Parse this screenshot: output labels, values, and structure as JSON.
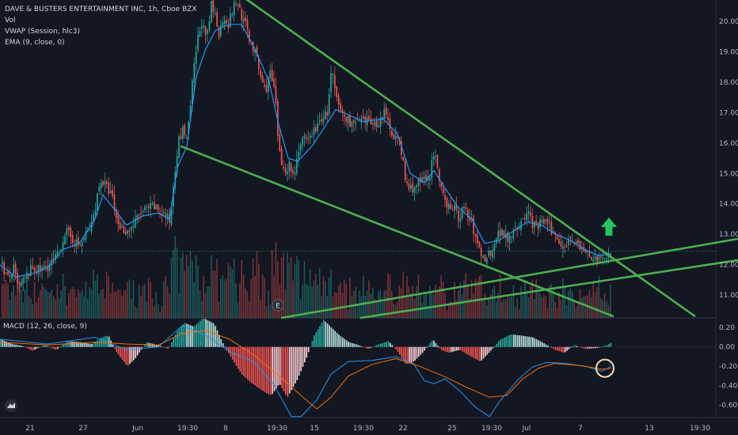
{
  "legend": {
    "title": "DAVE & BUSTERS ENTERTAINMENT INC, 1h, Cboe BZX",
    "vol": "Vol",
    "vwap": "VWAP (Session, hlc3)",
    "ema": "EMA (9, close, 0)"
  },
  "macd_legend": "MACD (12, 26, close, 9)",
  "event_marker": "E",
  "colors": {
    "background": "#131722",
    "up": "#26a69a",
    "down": "#ef5350",
    "ema": "#2196f3",
    "trendline": "#4caf50",
    "arrow": "#22c55e",
    "macd_line": "#2196f3",
    "signal_line": "#ff6d00",
    "circle": "#f5deb3"
  },
  "chart_data": [
    {
      "type": "candlestick",
      "title": "DAVE & BUSTERS ENTERTAINMENT INC, 1h, Cboe BZX",
      "x_ticks": [
        "21",
        "27",
        "Jun",
        "19:30",
        "8",
        "19:30",
        "15",
        "19:30",
        "22",
        "25",
        "19:30",
        "Jul",
        "7",
        "13",
        "19:30"
      ],
      "y_ticks": [
        11.0,
        12.0,
        13.0,
        14.0,
        15.0,
        16.0,
        17.0,
        18.0,
        19.0,
        20.0
      ],
      "ylim": [
        10.25,
        20.7
      ],
      "current_price": 12.45,
      "price_path": [
        [
          0,
          12.1
        ],
        [
          6,
          11.7
        ],
        [
          10,
          11.5
        ],
        [
          16,
          11.9
        ],
        [
          22,
          11.2
        ],
        [
          30,
          11.5
        ],
        [
          40,
          11.9
        ],
        [
          50,
          11.8
        ],
        [
          62,
          12.0
        ],
        [
          72,
          12.3
        ],
        [
          82,
          13.1
        ],
        [
          92,
          12.8
        ],
        [
          100,
          12.6
        ],
        [
          108,
          13.0
        ],
        [
          115,
          13.3
        ],
        [
          120,
          14.0
        ],
        [
          126,
          14.8
        ],
        [
          132,
          14.6
        ],
        [
          140,
          14.3
        ],
        [
          146,
          13.5
        ],
        [
          152,
          13.2
        ],
        [
          160,
          13.1
        ],
        [
          168,
          13.3
        ],
        [
          176,
          13.7
        ],
        [
          184,
          13.8
        ],
        [
          192,
          13.9
        ],
        [
          200,
          13.8
        ],
        [
          208,
          13.6
        ],
        [
          214,
          13.4
        ],
        [
          219,
          14.9
        ],
        [
          224,
          16.0
        ],
        [
          230,
          16.4
        ],
        [
          236,
          16.2
        ],
        [
          242,
          17.9
        ],
        [
          248,
          19.3
        ],
        [
          254,
          20.0
        ],
        [
          260,
          19.3
        ],
        [
          266,
          20.5
        ],
        [
          272,
          20.1
        ],
        [
          276,
          19.6
        ],
        [
          282,
          20.2
        ],
        [
          288,
          19.9
        ],
        [
          294,
          20.5
        ],
        [
          300,
          20.6
        ],
        [
          305,
          20.1
        ],
        [
          310,
          19.8
        ],
        [
          316,
          19.3
        ],
        [
          322,
          18.9
        ],
        [
          328,
          18.2
        ],
        [
          334,
          17.7
        ],
        [
          340,
          18.3
        ],
        [
          346,
          17.7
        ],
        [
          352,
          15.6
        ],
        [
          358,
          15.1
        ],
        [
          364,
          15.3
        ],
        [
          370,
          14.9
        ],
        [
          376,
          15.8
        ],
        [
          382,
          16.1
        ],
        [
          388,
          16.0
        ],
        [
          394,
          16.4
        ],
        [
          400,
          16.5
        ],
        [
          406,
          16.9
        ],
        [
          412,
          16.9
        ],
        [
          418,
          18.4
        ],
        [
          424,
          17.4
        ],
        [
          430,
          17.0
        ],
        [
          436,
          16.8
        ],
        [
          442,
          16.7
        ],
        [
          448,
          16.6
        ],
        [
          454,
          16.7
        ],
        [
          460,
          16.6
        ],
        [
          466,
          16.8
        ],
        [
          472,
          16.6
        ],
        [
          478,
          16.7
        ],
        [
          484,
          17.0
        ],
        [
          490,
          16.6
        ],
        [
          496,
          16.3
        ],
        [
          502,
          16.1
        ],
        [
          508,
          15.4
        ],
        [
          512,
          14.6
        ],
        [
          518,
          14.5
        ],
        [
          524,
          14.6
        ],
        [
          530,
          14.7
        ],
        [
          536,
          14.8
        ],
        [
          542,
          15.0
        ],
        [
          548,
          15.7
        ],
        [
          554,
          14.6
        ],
        [
          560,
          14.1
        ],
        [
          566,
          14.0
        ],
        [
          572,
          13.9
        ],
        [
          578,
          13.5
        ],
        [
          584,
          13.9
        ],
        [
          590,
          13.6
        ],
        [
          596,
          13.3
        ],
        [
          600,
          12.8
        ],
        [
          606,
          12.4
        ],
        [
          612,
          12.2
        ],
        [
          618,
          12.4
        ],
        [
          624,
          12.8
        ],
        [
          630,
          13.1
        ],
        [
          636,
          13.0
        ],
        [
          642,
          12.9
        ],
        [
          648,
          13.2
        ],
        [
          654,
          13.3
        ],
        [
          660,
          13.4
        ],
        [
          666,
          13.8
        ],
        [
          672,
          13.3
        ],
        [
          678,
          13.2
        ],
        [
          684,
          13.5
        ],
        [
          690,
          13.3
        ],
        [
          696,
          13.1
        ],
        [
          702,
          12.9
        ],
        [
          708,
          12.7
        ],
        [
          714,
          12.7
        ],
        [
          720,
          12.9
        ],
        [
          726,
          12.8
        ],
        [
          732,
          12.5
        ],
        [
          738,
          12.4
        ],
        [
          744,
          12.3
        ],
        [
          750,
          12.2
        ],
        [
          756,
          12.1
        ],
        [
          762,
          12.2
        ],
        [
          768,
          12.4
        ],
        [
          772,
          12.45
        ]
      ],
      "ema_path": [
        [
          0,
          12.0
        ],
        [
          20,
          11.6
        ],
        [
          40,
          11.7
        ],
        [
          60,
          11.9
        ],
        [
          80,
          12.5
        ],
        [
          100,
          12.7
        ],
        [
          120,
          13.5
        ],
        [
          130,
          14.3
        ],
        [
          145,
          13.8
        ],
        [
          160,
          13.3
        ],
        [
          180,
          13.6
        ],
        [
          200,
          13.7
        ],
        [
          214,
          13.5
        ],
        [
          224,
          15.2
        ],
        [
          236,
          15.9
        ],
        [
          248,
          18.2
        ],
        [
          260,
          19.1
        ],
        [
          272,
          19.7
        ],
        [
          290,
          19.9
        ],
        [
          305,
          19.9
        ],
        [
          322,
          19.1
        ],
        [
          340,
          18.0
        ],
        [
          352,
          16.6
        ],
        [
          364,
          15.5
        ],
        [
          376,
          15.4
        ],
        [
          394,
          15.9
        ],
        [
          412,
          16.6
        ],
        [
          424,
          17.1
        ],
        [
          442,
          16.9
        ],
        [
          460,
          16.7
        ],
        [
          484,
          16.8
        ],
        [
          502,
          16.3
        ],
        [
          518,
          15.0
        ],
        [
          536,
          14.7
        ],
        [
          548,
          15.1
        ],
        [
          560,
          14.6
        ],
        [
          578,
          13.9
        ],
        [
          596,
          13.5
        ],
        [
          612,
          12.7
        ],
        [
          630,
          12.8
        ],
        [
          648,
          13.1
        ],
        [
          666,
          13.4
        ],
        [
          684,
          13.3
        ],
        [
          702,
          13.0
        ],
        [
          720,
          12.8
        ],
        [
          738,
          12.5
        ],
        [
          756,
          12.3
        ],
        [
          772,
          12.35
        ]
      ],
      "trendlines": [
        {
          "name": "upper-resistance",
          "from": [
            307,
            20.8
          ],
          "to": [
            878,
            10.3
          ]
        },
        {
          "name": "lower-channel",
          "from": [
            228,
            15.9
          ],
          "to": [
            775,
            10.3
          ]
        },
        {
          "name": "support-1",
          "from": [
            355,
            10.25
          ],
          "to": [
            932,
            12.85
          ]
        },
        {
          "name": "support-2",
          "from": [
            455,
            10.25
          ],
          "to": [
            932,
            12.15
          ]
        }
      ],
      "arrow_direction": "up"
    },
    {
      "type": "macd",
      "title": "MACD (12, 26, close, 9)",
      "y_ticks": [
        0.2,
        0.0,
        -0.2,
        -0.4,
        -0.6
      ],
      "ylim": [
        -0.73,
        0.3
      ],
      "histogram_path": [
        [
          0,
          0.08
        ],
        [
          15,
          0.03
        ],
        [
          28,
          0.01
        ],
        [
          40,
          -0.04
        ],
        [
          55,
          0.02
        ],
        [
          70,
          -0.03
        ],
        [
          85,
          0.06
        ],
        [
          100,
          0.05
        ],
        [
          115,
          0.03
        ],
        [
          128,
          0.1
        ],
        [
          136,
          0.12
        ],
        [
          146,
          -0.05
        ],
        [
          160,
          -0.2
        ],
        [
          170,
          -0.12
        ],
        [
          184,
          0.05
        ],
        [
          198,
          0.02
        ],
        [
          212,
          -0.02
        ],
        [
          222,
          0.15
        ],
        [
          232,
          0.25
        ],
        [
          244,
          0.21
        ],
        [
          256,
          0.3
        ],
        [
          270,
          0.24
        ],
        [
          280,
          0.05
        ],
        [
          292,
          -0.12
        ],
        [
          304,
          -0.28
        ],
        [
          318,
          -0.38
        ],
        [
          334,
          -0.47
        ],
        [
          342,
          -0.5
        ],
        [
          352,
          -0.38
        ],
        [
          362,
          -0.52
        ],
        [
          374,
          -0.35
        ],
        [
          386,
          -0.12
        ],
        [
          396,
          0.12
        ],
        [
          408,
          0.28
        ],
        [
          418,
          0.2
        ],
        [
          428,
          0.12
        ],
        [
          440,
          0.05
        ],
        [
          452,
          0.02
        ],
        [
          464,
          -0.02
        ],
        [
          478,
          0.03
        ],
        [
          490,
          0.06
        ],
        [
          500,
          -0.03
        ],
        [
          512,
          -0.18
        ],
        [
          522,
          -0.15
        ],
        [
          534,
          -0.05
        ],
        [
          546,
          0.08
        ],
        [
          556,
          -0.03
        ],
        [
          566,
          -0.06
        ],
        [
          580,
          -0.03
        ],
        [
          594,
          -0.1
        ],
        [
          606,
          -0.15
        ],
        [
          618,
          -0.05
        ],
        [
          630,
          0.07
        ],
        [
          644,
          0.13
        ],
        [
          656,
          0.12
        ],
        [
          672,
          0.1
        ],
        [
          686,
          0.04
        ],
        [
          700,
          -0.03
        ],
        [
          712,
          -0.06
        ],
        [
          724,
          0.02
        ],
        [
          738,
          -0.02
        ],
        [
          754,
          -0.01
        ],
        [
          766,
          0.02
        ],
        [
          772,
          0.05
        ]
      ],
      "macd_line_path": [
        [
          0,
          0.08
        ],
        [
          60,
          0.03
        ],
        [
          120,
          0.1
        ],
        [
          160,
          -0.03
        ],
        [
          200,
          0.0
        ],
        [
          230,
          0.22
        ],
        [
          260,
          0.12
        ],
        [
          290,
          -0.05
        ],
        [
          320,
          -0.15
        ],
        [
          345,
          -0.38
        ],
        [
          368,
          -0.72
        ],
        [
          380,
          -0.72
        ],
        [
          400,
          -0.55
        ],
        [
          418,
          -0.28
        ],
        [
          440,
          -0.15
        ],
        [
          470,
          -0.14
        ],
        [
          500,
          -0.1
        ],
        [
          522,
          -0.17
        ],
        [
          536,
          -0.35
        ],
        [
          548,
          -0.38
        ],
        [
          562,
          -0.33
        ],
        [
          580,
          -0.45
        ],
        [
          600,
          -0.62
        ],
        [
          618,
          -0.72
        ],
        [
          632,
          -0.55
        ],
        [
          654,
          -0.34
        ],
        [
          672,
          -0.21
        ],
        [
          690,
          -0.16
        ],
        [
          714,
          -0.17
        ],
        [
          740,
          -0.2
        ],
        [
          760,
          -0.25
        ],
        [
          772,
          -0.2
        ]
      ],
      "signal_line_path": [
        [
          0,
          0.05
        ],
        [
          60,
          0.02
        ],
        [
          120,
          0.05
        ],
        [
          160,
          0.03
        ],
        [
          200,
          0.02
        ],
        [
          230,
          0.14
        ],
        [
          260,
          0.17
        ],
        [
          290,
          0.08
        ],
        [
          320,
          -0.08
        ],
        [
          350,
          -0.28
        ],
        [
          380,
          -0.5
        ],
        [
          400,
          -0.64
        ],
        [
          418,
          -0.52
        ],
        [
          440,
          -0.3
        ],
        [
          470,
          -0.18
        ],
        [
          500,
          -0.12
        ],
        [
          530,
          -0.2
        ],
        [
          560,
          -0.3
        ],
        [
          590,
          -0.42
        ],
        [
          618,
          -0.52
        ],
        [
          640,
          -0.5
        ],
        [
          660,
          -0.33
        ],
        [
          680,
          -0.22
        ],
        [
          700,
          -0.17
        ],
        [
          730,
          -0.19
        ],
        [
          760,
          -0.23
        ],
        [
          772,
          -0.22
        ]
      ]
    }
  ]
}
